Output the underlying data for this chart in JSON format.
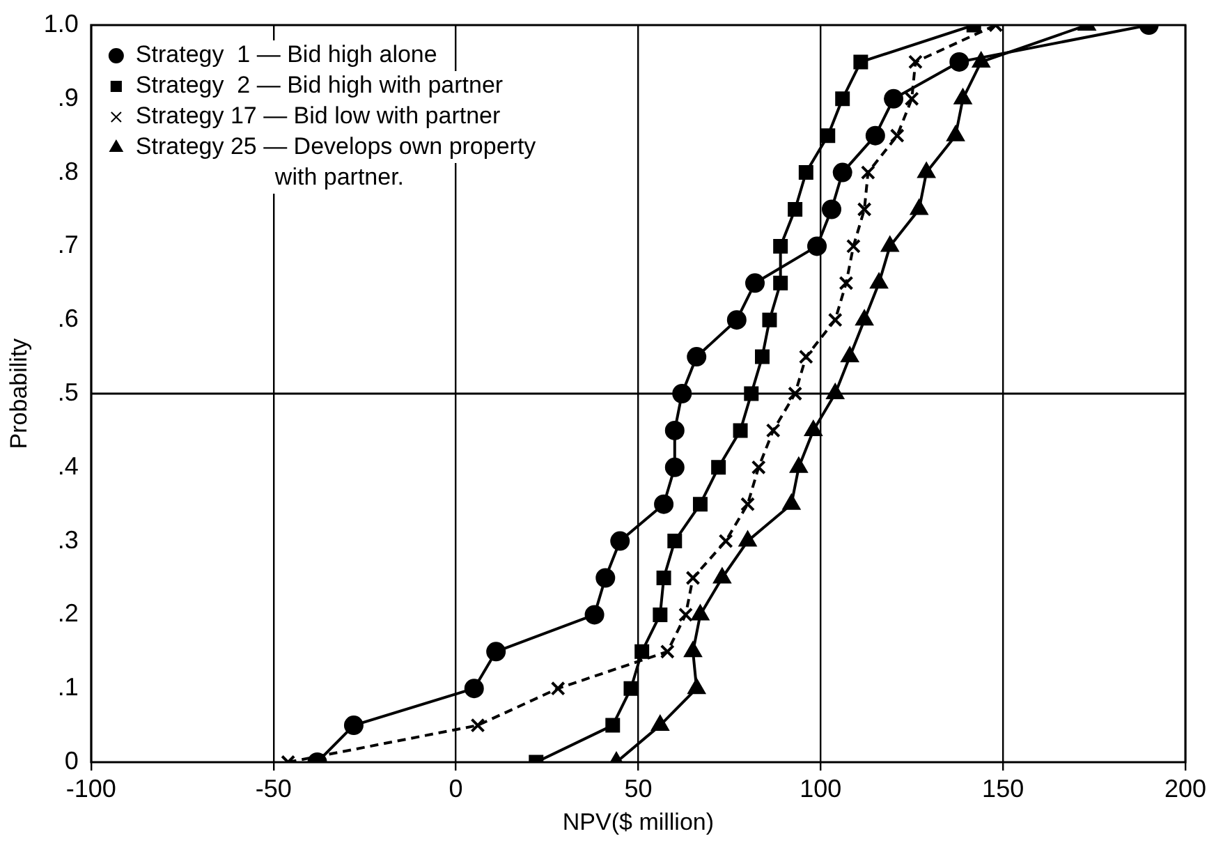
{
  "chart_data": {
    "type": "line",
    "xlabel": "NPV($ million)",
    "ylabel": "Probability",
    "xlim": [
      -100,
      200
    ],
    "xticks": [
      -100,
      -50,
      0,
      50,
      100,
      150,
      200
    ],
    "ylim": [
      0,
      1.0
    ],
    "yticks": [
      0,
      {
        "value": 0.1,
        "label": ".1"
      },
      {
        "value": 0.2,
        "label": ".2"
      },
      {
        "value": 0.3,
        "label": ".3"
      },
      {
        "value": 0.4,
        "label": ".4"
      },
      {
        "value": 0.5,
        "label": ".5"
      },
      {
        "value": 0.6,
        "label": ".6"
      },
      {
        "value": 0.7,
        "label": ".7"
      },
      {
        "value": 0.8,
        "label": ".8"
      },
      {
        "value": 0.9,
        "label": ".9"
      },
      {
        "value": 1.0,
        "label": "1.0"
      }
    ],
    "grid": "x",
    "legend": "top left",
    "ref_lines": [
      {
        "axis": "y",
        "value": 0.5,
        "color": "#000000"
      }
    ],
    "series": [
      {
        "name": "Strategy  1 — Bid high alone",
        "color": "#000000",
        "marker": "circle",
        "line_style": "solid",
        "x": [
          -38,
          -28,
          5,
          11,
          38,
          41,
          45,
          57,
          60,
          60,
          62,
          66,
          77,
          82,
          99,
          103,
          106,
          115,
          120,
          138,
          190
        ],
        "values": [
          0,
          0.05,
          0.1,
          0.15,
          0.2,
          0.25,
          0.3,
          0.35,
          0.4,
          0.45,
          0.5,
          0.55,
          0.6,
          0.65,
          0.7,
          0.75,
          0.8,
          0.85,
          0.9,
          0.95,
          1.0
        ]
      },
      {
        "name": "Strategy  2 — Bid high with partner",
        "color": "#000000",
        "marker": "square",
        "line_style": "solid",
        "x": [
          22,
          43,
          48,
          51,
          56,
          57,
          60,
          67,
          72,
          78,
          81,
          84,
          86,
          89,
          89,
          93,
          96,
          102,
          106,
          111,
          142
        ],
        "values": [
          0,
          0.05,
          0.1,
          0.15,
          0.2,
          0.25,
          0.3,
          0.35,
          0.4,
          0.45,
          0.5,
          0.55,
          0.6,
          0.65,
          0.7,
          0.75,
          0.8,
          0.85,
          0.9,
          0.95,
          1.0
        ]
      },
      {
        "name": "Strategy 17 — Bid low with partner",
        "color": "#000000",
        "marker": "cross",
        "line_style": "dashed",
        "x": [
          -46,
          6,
          28,
          58,
          63,
          65,
          74,
          80,
          83,
          87,
          93,
          96,
          104,
          107,
          109,
          112,
          113,
          121,
          125,
          126,
          148
        ],
        "values": [
          0,
          0.05,
          0.1,
          0.15,
          0.2,
          0.25,
          0.3,
          0.35,
          0.4,
          0.45,
          0.5,
          0.55,
          0.6,
          0.65,
          0.7,
          0.75,
          0.8,
          0.85,
          0.9,
          0.95,
          1.0
        ]
      },
      {
        "name": "Strategy 25 — Develops own property with partner.",
        "color": "#000000",
        "marker": "triangle",
        "line_style": "solid",
        "x": [
          44,
          56,
          66,
          65,
          67,
          73,
          80,
          92,
          94,
          98,
          104,
          108,
          112,
          116,
          119,
          127,
          129,
          137,
          139,
          144,
          173
        ],
        "values": [
          0,
          0.05,
          0.1,
          0.15,
          0.2,
          0.25,
          0.3,
          0.35,
          0.4,
          0.45,
          0.5,
          0.55,
          0.6,
          0.65,
          0.7,
          0.75,
          0.8,
          0.85,
          0.9,
          0.95,
          1.0
        ]
      }
    ]
  }
}
